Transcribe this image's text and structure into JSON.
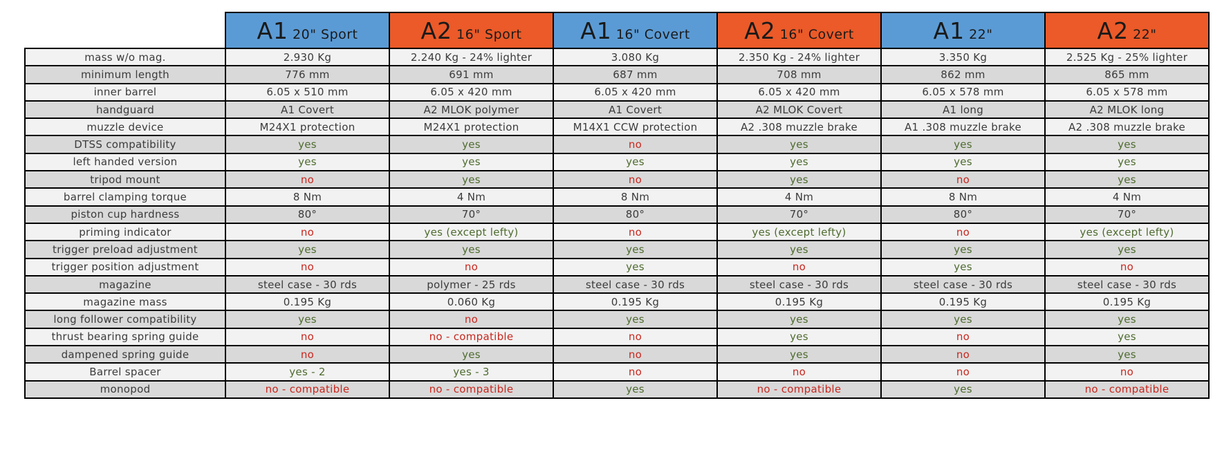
{
  "colors": {
    "header_blue": "#5b9bd5",
    "header_orange": "#eb5a28",
    "status_green": "#4e6b2f",
    "status_red": "#c9271e",
    "stripe_light": "#f2f2f2",
    "stripe_dark": "#d9d9d9",
    "border": "#000000"
  },
  "table": {
    "columns": [
      {
        "model": "A1",
        "variant": "20\" Sport",
        "scheme": "blue"
      },
      {
        "model": "A2",
        "variant": "16\" Sport",
        "scheme": "orange"
      },
      {
        "model": "A1",
        "variant": "16\" Covert",
        "scheme": "blue"
      },
      {
        "model": "A2",
        "variant": "16\" Covert",
        "scheme": "orange"
      },
      {
        "model": "A1",
        "variant": "22\"",
        "scheme": "blue"
      },
      {
        "model": "A2",
        "variant": "22\"",
        "scheme": "orange"
      }
    ],
    "rows": [
      {
        "label": "mass w/o mag.",
        "cells": [
          {
            "text": "2.930 Kg",
            "color": "black"
          },
          {
            "text": "2.240 Kg - 24% lighter",
            "color": "black"
          },
          {
            "text": "3.080 Kg",
            "color": "black"
          },
          {
            "text": "2.350 Kg - 24% lighter",
            "color": "black"
          },
          {
            "text": "3.350 Kg",
            "color": "black"
          },
          {
            "text": "2.525 Kg - 25% lighter",
            "color": "black"
          }
        ]
      },
      {
        "label": "minimum length",
        "cells": [
          {
            "text": "776 mm",
            "color": "black"
          },
          {
            "text": "691 mm",
            "color": "black"
          },
          {
            "text": "687 mm",
            "color": "black"
          },
          {
            "text": "708 mm",
            "color": "black"
          },
          {
            "text": "862 mm",
            "color": "black"
          },
          {
            "text": "865 mm",
            "color": "black"
          }
        ]
      },
      {
        "label": "inner barrel",
        "cells": [
          {
            "text": "6.05 x 510 mm",
            "color": "black"
          },
          {
            "text": "6.05 x 420 mm",
            "color": "black"
          },
          {
            "text": "6.05 x 420 mm",
            "color": "black"
          },
          {
            "text": "6.05 x 420 mm",
            "color": "black"
          },
          {
            "text": "6.05 x 578 mm",
            "color": "black"
          },
          {
            "text": "6.05 x 578 mm",
            "color": "black"
          }
        ]
      },
      {
        "label": "handguard",
        "cells": [
          {
            "text": "A1 Covert",
            "color": "black"
          },
          {
            "text": "A2 MLOK polymer",
            "color": "black"
          },
          {
            "text": "A1 Covert",
            "color": "black"
          },
          {
            "text": "A2 MLOK Covert",
            "color": "black"
          },
          {
            "text": "A1 long",
            "color": "black"
          },
          {
            "text": "A2 MLOK long",
            "color": "black"
          }
        ]
      },
      {
        "label": "muzzle device",
        "cells": [
          {
            "text": "M24X1 protection",
            "color": "black"
          },
          {
            "text": "M24X1 protection",
            "color": "black"
          },
          {
            "text": "M14X1 CCW protection",
            "color": "black"
          },
          {
            "text": "A2 .308 muzzle brake",
            "color": "black"
          },
          {
            "text": "A1 .308 muzzle brake",
            "color": "black"
          },
          {
            "text": "A2 .308 muzzle brake",
            "color": "black"
          }
        ]
      },
      {
        "label": "DTSS compatibility",
        "cells": [
          {
            "text": "yes",
            "color": "green"
          },
          {
            "text": "yes",
            "color": "green"
          },
          {
            "text": "no",
            "color": "red"
          },
          {
            "text": "yes",
            "color": "green"
          },
          {
            "text": "yes",
            "color": "green"
          },
          {
            "text": "yes",
            "color": "green"
          }
        ]
      },
      {
        "label": "left handed version",
        "cells": [
          {
            "text": "yes",
            "color": "green"
          },
          {
            "text": "yes",
            "color": "green"
          },
          {
            "text": "yes",
            "color": "green"
          },
          {
            "text": "yes",
            "color": "green"
          },
          {
            "text": "yes",
            "color": "green"
          },
          {
            "text": "yes",
            "color": "green"
          }
        ]
      },
      {
        "label": "tripod mount",
        "cells": [
          {
            "text": "no",
            "color": "red"
          },
          {
            "text": "yes",
            "color": "green"
          },
          {
            "text": "no",
            "color": "red"
          },
          {
            "text": "yes",
            "color": "green"
          },
          {
            "text": "no",
            "color": "red"
          },
          {
            "text": "yes",
            "color": "green"
          }
        ]
      },
      {
        "label": "barrel clamping torque",
        "cells": [
          {
            "text": "8 Nm",
            "color": "black"
          },
          {
            "text": "4 Nm",
            "color": "black"
          },
          {
            "text": "8 Nm",
            "color": "black"
          },
          {
            "text": "4 Nm",
            "color": "black"
          },
          {
            "text": "8 Nm",
            "color": "black"
          },
          {
            "text": "4 Nm",
            "color": "black"
          }
        ]
      },
      {
        "label": "piston cup hardness",
        "cells": [
          {
            "text": "80°",
            "color": "black"
          },
          {
            "text": "70°",
            "color": "black"
          },
          {
            "text": "80°",
            "color": "black"
          },
          {
            "text": "70°",
            "color": "black"
          },
          {
            "text": "80°",
            "color": "black"
          },
          {
            "text": "70°",
            "color": "black"
          }
        ]
      },
      {
        "label": "priming indicator",
        "cells": [
          {
            "text": "no",
            "color": "red"
          },
          {
            "text": "yes (except lefty)",
            "color": "green"
          },
          {
            "text": "no",
            "color": "red"
          },
          {
            "text": "yes (except lefty)",
            "color": "green"
          },
          {
            "text": "no",
            "color": "red"
          },
          {
            "text": "yes (except lefty)",
            "color": "green"
          }
        ]
      },
      {
        "label": "trigger preload adjustment",
        "cells": [
          {
            "text": "yes",
            "color": "green"
          },
          {
            "text": "yes",
            "color": "green"
          },
          {
            "text": "yes",
            "color": "green"
          },
          {
            "text": "yes",
            "color": "green"
          },
          {
            "text": "yes",
            "color": "green"
          },
          {
            "text": "yes",
            "color": "green"
          }
        ]
      },
      {
        "label": "trigger position adjustment",
        "cells": [
          {
            "text": "no",
            "color": "red"
          },
          {
            "text": "no",
            "color": "red"
          },
          {
            "text": "yes",
            "color": "green"
          },
          {
            "text": "no",
            "color": "red"
          },
          {
            "text": "yes",
            "color": "green"
          },
          {
            "text": "no",
            "color": "red"
          }
        ]
      },
      {
        "label": "magazine",
        "cells": [
          {
            "text": "steel case - 30 rds",
            "color": "black"
          },
          {
            "text": "polymer - 25 rds",
            "color": "black"
          },
          {
            "text": "steel case - 30 rds",
            "color": "black"
          },
          {
            "text": "steel case - 30 rds",
            "color": "black"
          },
          {
            "text": "steel case - 30 rds",
            "color": "black"
          },
          {
            "text": "steel case - 30 rds",
            "color": "black"
          }
        ]
      },
      {
        "label": "magazine mass",
        "cells": [
          {
            "text": "0.195 Kg",
            "color": "black"
          },
          {
            "text": "0.060 Kg",
            "color": "black"
          },
          {
            "text": "0.195 Kg",
            "color": "black"
          },
          {
            "text": "0.195 Kg",
            "color": "black"
          },
          {
            "text": "0.195 Kg",
            "color": "black"
          },
          {
            "text": "0.195 Kg",
            "color": "black"
          }
        ]
      },
      {
        "label": "long follower compatibility",
        "cells": [
          {
            "text": "yes",
            "color": "green"
          },
          {
            "text": "no",
            "color": "red"
          },
          {
            "text": "yes",
            "color": "green"
          },
          {
            "text": "yes",
            "color": "green"
          },
          {
            "text": "yes",
            "color": "green"
          },
          {
            "text": "yes",
            "color": "green"
          }
        ]
      },
      {
        "label": "thrust bearing spring guide",
        "cells": [
          {
            "text": "no",
            "color": "red"
          },
          {
            "text": "no - compatible",
            "color": "red"
          },
          {
            "text": "no",
            "color": "red"
          },
          {
            "text": "yes",
            "color": "green"
          },
          {
            "text": "no",
            "color": "red"
          },
          {
            "text": "yes",
            "color": "green"
          }
        ]
      },
      {
        "label": "dampened spring guide",
        "cells": [
          {
            "text": "no",
            "color": "red"
          },
          {
            "text": "yes",
            "color": "green"
          },
          {
            "text": "no",
            "color": "red"
          },
          {
            "text": "yes",
            "color": "green"
          },
          {
            "text": "no",
            "color": "red"
          },
          {
            "text": "yes",
            "color": "green"
          }
        ]
      },
      {
        "label": "Barrel spacer",
        "cells": [
          {
            "text": "yes - 2",
            "color": "green"
          },
          {
            "text": "yes - 3",
            "color": "green"
          },
          {
            "text": "no",
            "color": "red"
          },
          {
            "text": "no",
            "color": "red"
          },
          {
            "text": "no",
            "color": "red"
          },
          {
            "text": "no",
            "color": "red"
          }
        ]
      },
      {
        "label": "monopod",
        "cells": [
          {
            "text": "no - compatible",
            "color": "red"
          },
          {
            "text": "no - compatible",
            "color": "red"
          },
          {
            "text": "yes",
            "color": "green"
          },
          {
            "text": "no - compatible",
            "color": "red"
          },
          {
            "text": "yes",
            "color": "green"
          },
          {
            "text": "no - compatible",
            "color": "red"
          }
        ]
      }
    ]
  }
}
